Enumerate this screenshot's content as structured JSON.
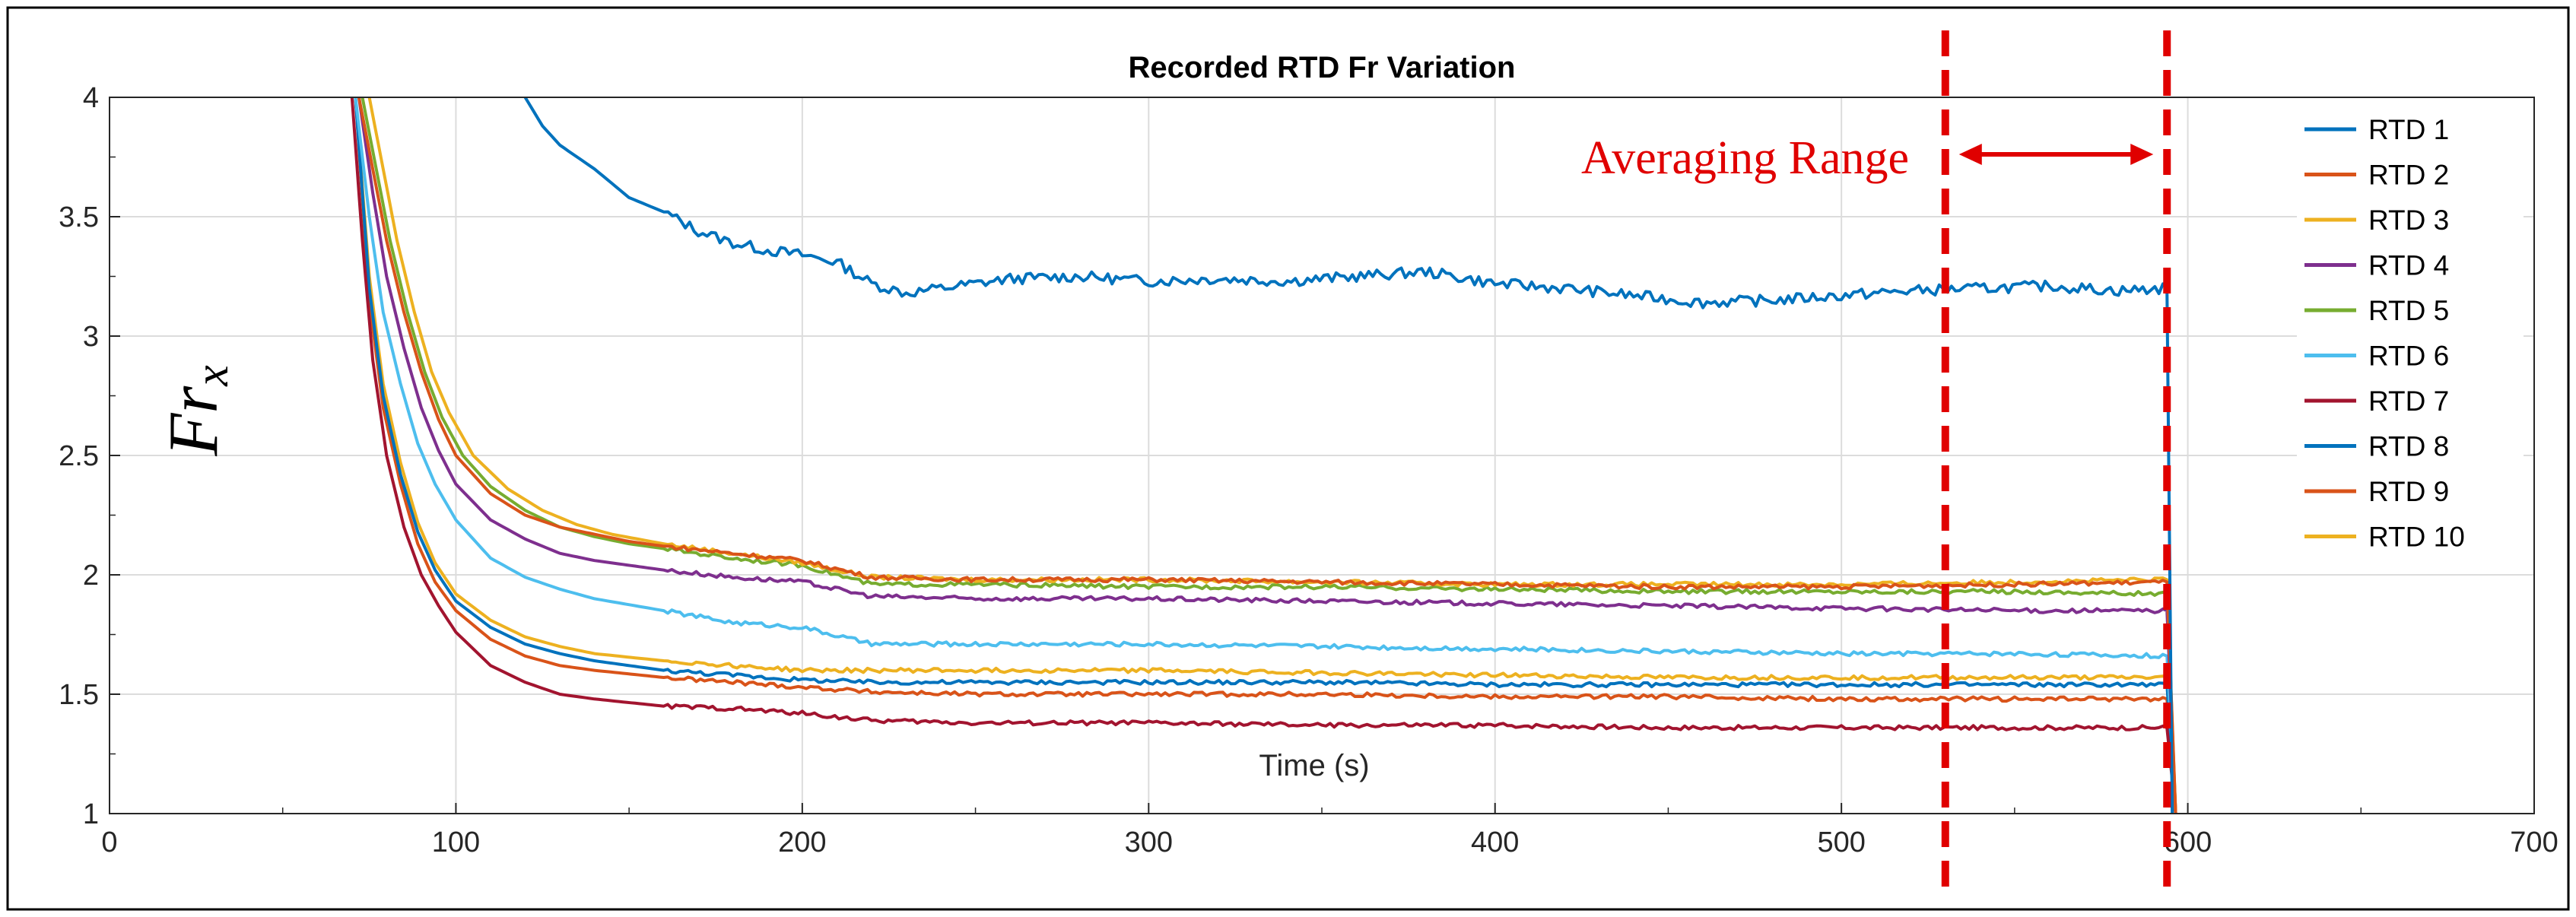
{
  "chart_data": {
    "type": "line",
    "title": "Recorded RTD Fr Variation",
    "xlabel": "Time (s)",
    "ylabel": "Fr",
    "ylabel_subscript": "x",
    "xlim": [
      0,
      700
    ],
    "ylim": [
      1,
      4
    ],
    "xticks": [
      0,
      100,
      200,
      300,
      400,
      500,
      600,
      700
    ],
    "yticks": [
      1,
      1.5,
      2,
      2.5,
      3,
      3.5,
      4
    ],
    "xtick_labels": [
      "0",
      "100",
      "200",
      "300",
      "400",
      "500",
      "600",
      "700"
    ],
    "ytick_labels": [
      "1",
      "1.5",
      "2",
      "2.5",
      "3",
      "3.5",
      "4"
    ],
    "grid": true,
    "legend_position": "top-right",
    "annotation": {
      "text": "Averaging Range",
      "x_start": 530,
      "x_end": 594,
      "color": "#e00000"
    },
    "series": [
      {
        "name": "RTD 1",
        "color": "#0072BD",
        "x": [
          120,
          125,
          130,
          140,
          150,
          160,
          170,
          180,
          190,
          200,
          210,
          220,
          230,
          240,
          260,
          280,
          300,
          320,
          340,
          360,
          380,
          400,
          420,
          440,
          460,
          480,
          500,
          520,
          540,
          560,
          580,
          594
        ],
        "values": [
          4.0,
          3.88,
          3.8,
          3.7,
          3.58,
          3.52,
          3.44,
          3.39,
          3.36,
          3.34,
          3.31,
          3.22,
          3.18,
          3.2,
          3.24,
          3.25,
          3.23,
          3.24,
          3.23,
          3.25,
          3.27,
          3.22,
          3.2,
          3.17,
          3.14,
          3.15,
          3.17,
          3.19,
          3.2,
          3.21,
          3.19,
          3.2
        ],
        "end_drop": 1.0
      },
      {
        "name": "RTD 2",
        "color": "#D95319",
        "x": [
          72,
          76,
          80,
          85,
          90,
          95,
          100,
          110,
          120,
          130,
          140,
          150,
          160,
          180,
          200,
          220,
          250,
          300,
          350,
          400,
          450,
          500,
          550,
          594
        ],
        "values": [
          4.0,
          3.7,
          3.4,
          3.1,
          2.85,
          2.65,
          2.5,
          2.34,
          2.25,
          2.2,
          2.17,
          2.14,
          2.12,
          2.09,
          2.06,
          1.99,
          1.98,
          1.98,
          1.97,
          1.96,
          1.95,
          1.95,
          1.96,
          1.97
        ],
        "end_drop": 1.0
      },
      {
        "name": "RTD 3",
        "color": "#EDB120",
        "x": [
          75,
          79,
          83,
          88,
          93,
          98,
          105,
          115,
          125,
          135,
          145,
          160,
          180,
          200,
          220,
          250,
          300,
          350,
          400,
          450,
          500,
          550,
          594
        ],
        "values": [
          4.0,
          3.7,
          3.4,
          3.1,
          2.85,
          2.68,
          2.5,
          2.36,
          2.27,
          2.21,
          2.17,
          2.13,
          2.09,
          2.05,
          1.99,
          1.98,
          1.98,
          1.97,
          1.96,
          1.96,
          1.96,
          1.97,
          1.98
        ],
        "end_drop": 1.0
      },
      {
        "name": "RTD 4",
        "color": "#7E2F8E",
        "x": [
          72,
          76,
          80,
          85,
          90,
          95,
          100,
          110,
          120,
          130,
          140,
          160,
          180,
          200,
          220,
          250,
          300,
          350,
          400,
          450,
          500,
          550,
          594
        ],
        "values": [
          4.0,
          3.6,
          3.25,
          2.95,
          2.7,
          2.52,
          2.38,
          2.23,
          2.15,
          2.09,
          2.06,
          2.02,
          1.99,
          1.97,
          1.91,
          1.9,
          1.9,
          1.89,
          1.88,
          1.87,
          1.86,
          1.85,
          1.85
        ],
        "end_drop": 1.0
      },
      {
        "name": "RTD 5",
        "color": "#77AC30",
        "x": [
          73,
          77,
          81,
          86,
          91,
          96,
          102,
          110,
          120,
          130,
          140,
          150,
          160,
          180,
          200,
          220,
          250,
          300,
          350,
          400,
          450,
          500,
          550,
          594
        ],
        "values": [
          4.0,
          3.7,
          3.4,
          3.1,
          2.85,
          2.66,
          2.5,
          2.37,
          2.27,
          2.2,
          2.16,
          2.13,
          2.11,
          2.07,
          2.04,
          1.96,
          1.96,
          1.95,
          1.95,
          1.94,
          1.93,
          1.93,
          1.93,
          1.92
        ],
        "end_drop": 1.0
      },
      {
        "name": "RTD 6",
        "color": "#4DBEEE",
        "x": [
          71,
          75,
          79,
          84,
          89,
          94,
          100,
          110,
          120,
          130,
          140,
          160,
          180,
          200,
          220,
          250,
          300,
          350,
          400,
          450,
          500,
          550,
          594
        ],
        "values": [
          4.0,
          3.5,
          3.1,
          2.8,
          2.55,
          2.38,
          2.23,
          2.07,
          1.99,
          1.94,
          1.9,
          1.85,
          1.8,
          1.78,
          1.71,
          1.71,
          1.71,
          1.7,
          1.69,
          1.68,
          1.67,
          1.67,
          1.66
        ],
        "end_drop": 1.0
      },
      {
        "name": "RTD 7",
        "color": "#A2142F",
        "x": [
          70,
          73,
          76,
          80,
          85,
          90,
          95,
          100,
          110,
          120,
          130,
          140,
          160,
          180,
          200,
          220,
          250,
          300,
          350,
          400,
          450,
          500,
          550,
          594
        ],
        "values": [
          4.0,
          3.4,
          2.9,
          2.5,
          2.2,
          2.0,
          1.87,
          1.76,
          1.62,
          1.55,
          1.5,
          1.48,
          1.45,
          1.44,
          1.42,
          1.39,
          1.38,
          1.38,
          1.37,
          1.37,
          1.36,
          1.36,
          1.36,
          1.36
        ],
        "end_drop": 1.0
      },
      {
        "name": "RTD 8",
        "color": "#0072BD",
        "x": [
          71,
          75,
          79,
          84,
          89,
          94,
          100,
          110,
          120,
          130,
          140,
          160,
          180,
          200,
          220,
          250,
          300,
          350,
          400,
          450,
          500,
          550,
          594
        ],
        "values": [
          4.0,
          3.2,
          2.75,
          2.42,
          2.18,
          2.02,
          1.89,
          1.78,
          1.71,
          1.67,
          1.64,
          1.6,
          1.58,
          1.56,
          1.55,
          1.55,
          1.55,
          1.55,
          1.54,
          1.54,
          1.54,
          1.54,
          1.54
        ],
        "end_drop": 1.0
      },
      {
        "name": "RTD 9",
        "color": "#D95319",
        "x": [
          71,
          75,
          79,
          84,
          89,
          94,
          100,
          110,
          120,
          130,
          140,
          160,
          180,
          200,
          220,
          250,
          300,
          350,
          400,
          450,
          500,
          550,
          594
        ],
        "values": [
          4.0,
          3.15,
          2.7,
          2.38,
          2.13,
          1.97,
          1.85,
          1.73,
          1.66,
          1.62,
          1.6,
          1.57,
          1.55,
          1.53,
          1.51,
          1.5,
          1.5,
          1.5,
          1.49,
          1.49,
          1.48,
          1.48,
          1.48
        ],
        "end_drop": 1.0
      },
      {
        "name": "RTD 10",
        "color": "#EDB120",
        "x": [
          71,
          75,
          79,
          84,
          89,
          94,
          100,
          110,
          120,
          130,
          140,
          160,
          180,
          200,
          220,
          250,
          300,
          350,
          400,
          450,
          500,
          550,
          594
        ],
        "values": [
          4.0,
          3.25,
          2.8,
          2.47,
          2.22,
          2.05,
          1.92,
          1.81,
          1.74,
          1.7,
          1.67,
          1.64,
          1.62,
          1.6,
          1.6,
          1.6,
          1.6,
          1.59,
          1.58,
          1.57,
          1.57,
          1.57,
          1.57
        ],
        "end_drop": 1.0
      }
    ]
  }
}
